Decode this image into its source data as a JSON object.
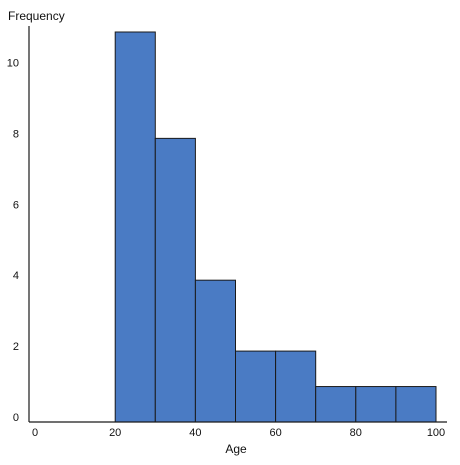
{
  "chart_data": {
    "type": "bar",
    "subtype": "histogram",
    "bins": [
      {
        "start": 20,
        "end": 30,
        "value": 11
      },
      {
        "start": 30,
        "end": 40,
        "value": 8
      },
      {
        "start": 40,
        "end": 50,
        "value": 4
      },
      {
        "start": 50,
        "end": 60,
        "value": 2
      },
      {
        "start": 60,
        "end": 70,
        "value": 2
      },
      {
        "start": 70,
        "end": 80,
        "value": 1
      },
      {
        "start": 80,
        "end": 90,
        "value": 1
      },
      {
        "start": 90,
        "end": 100,
        "value": 1
      }
    ],
    "xlabel": "Age",
    "ylabel": "Frequency",
    "xlim": [
      0,
      100
    ],
    "ylim": [
      0,
      11
    ],
    "xticks": [
      0,
      20,
      40,
      60,
      80,
      100
    ],
    "yticks": [
      0,
      2,
      4,
      6,
      8,
      10
    ],
    "grid": false,
    "legend": "none",
    "colors": {
      "bar_fill": "#4a7bc4",
      "bar_stroke": "#1a1a1a",
      "axis": "#1a1a1a"
    }
  }
}
